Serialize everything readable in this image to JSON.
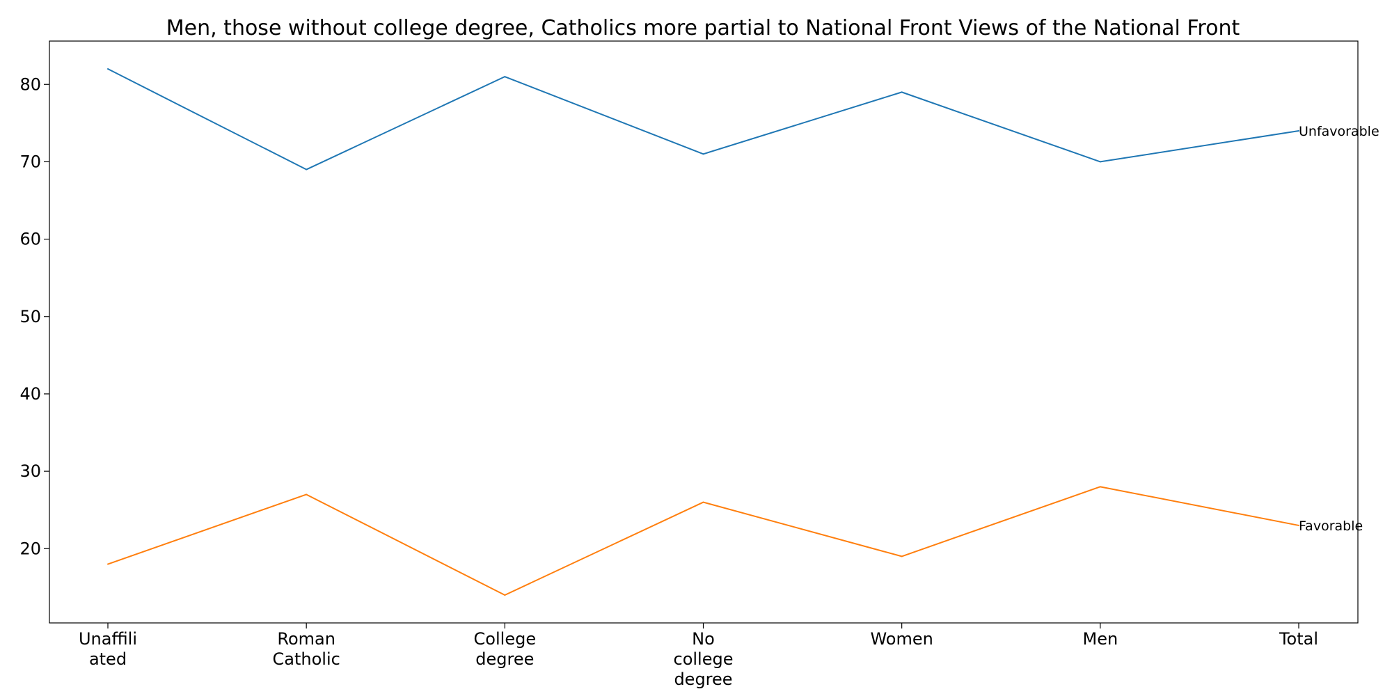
{
  "chart_data": {
    "type": "line",
    "title": "Men, those without college degree, Catholics more partial to National Front Views of the National Front",
    "xlabel": "",
    "ylabel": "",
    "categories": [
      [
        "Unaffili",
        "ated"
      ],
      [
        "Roman",
        "Catholic"
      ],
      [
        "College",
        "degree"
      ],
      [
        "No",
        "college",
        "degree"
      ],
      [
        "Women"
      ],
      [
        "Men"
      ],
      [
        "Total"
      ]
    ],
    "ylim": [
      10.4,
      85.6
    ],
    "yticks": [
      20,
      30,
      40,
      50,
      60,
      70,
      80
    ],
    "grid": false,
    "legend": "none",
    "series": [
      {
        "name": "Unfavorable",
        "color": "#1f77b4",
        "values": [
          82,
          69,
          81,
          71,
          79,
          70,
          74
        ]
      },
      {
        "name": "Favorable",
        "color": "#ff7f0e",
        "values": [
          18,
          27,
          14,
          26,
          19,
          28,
          23
        ]
      }
    ]
  }
}
